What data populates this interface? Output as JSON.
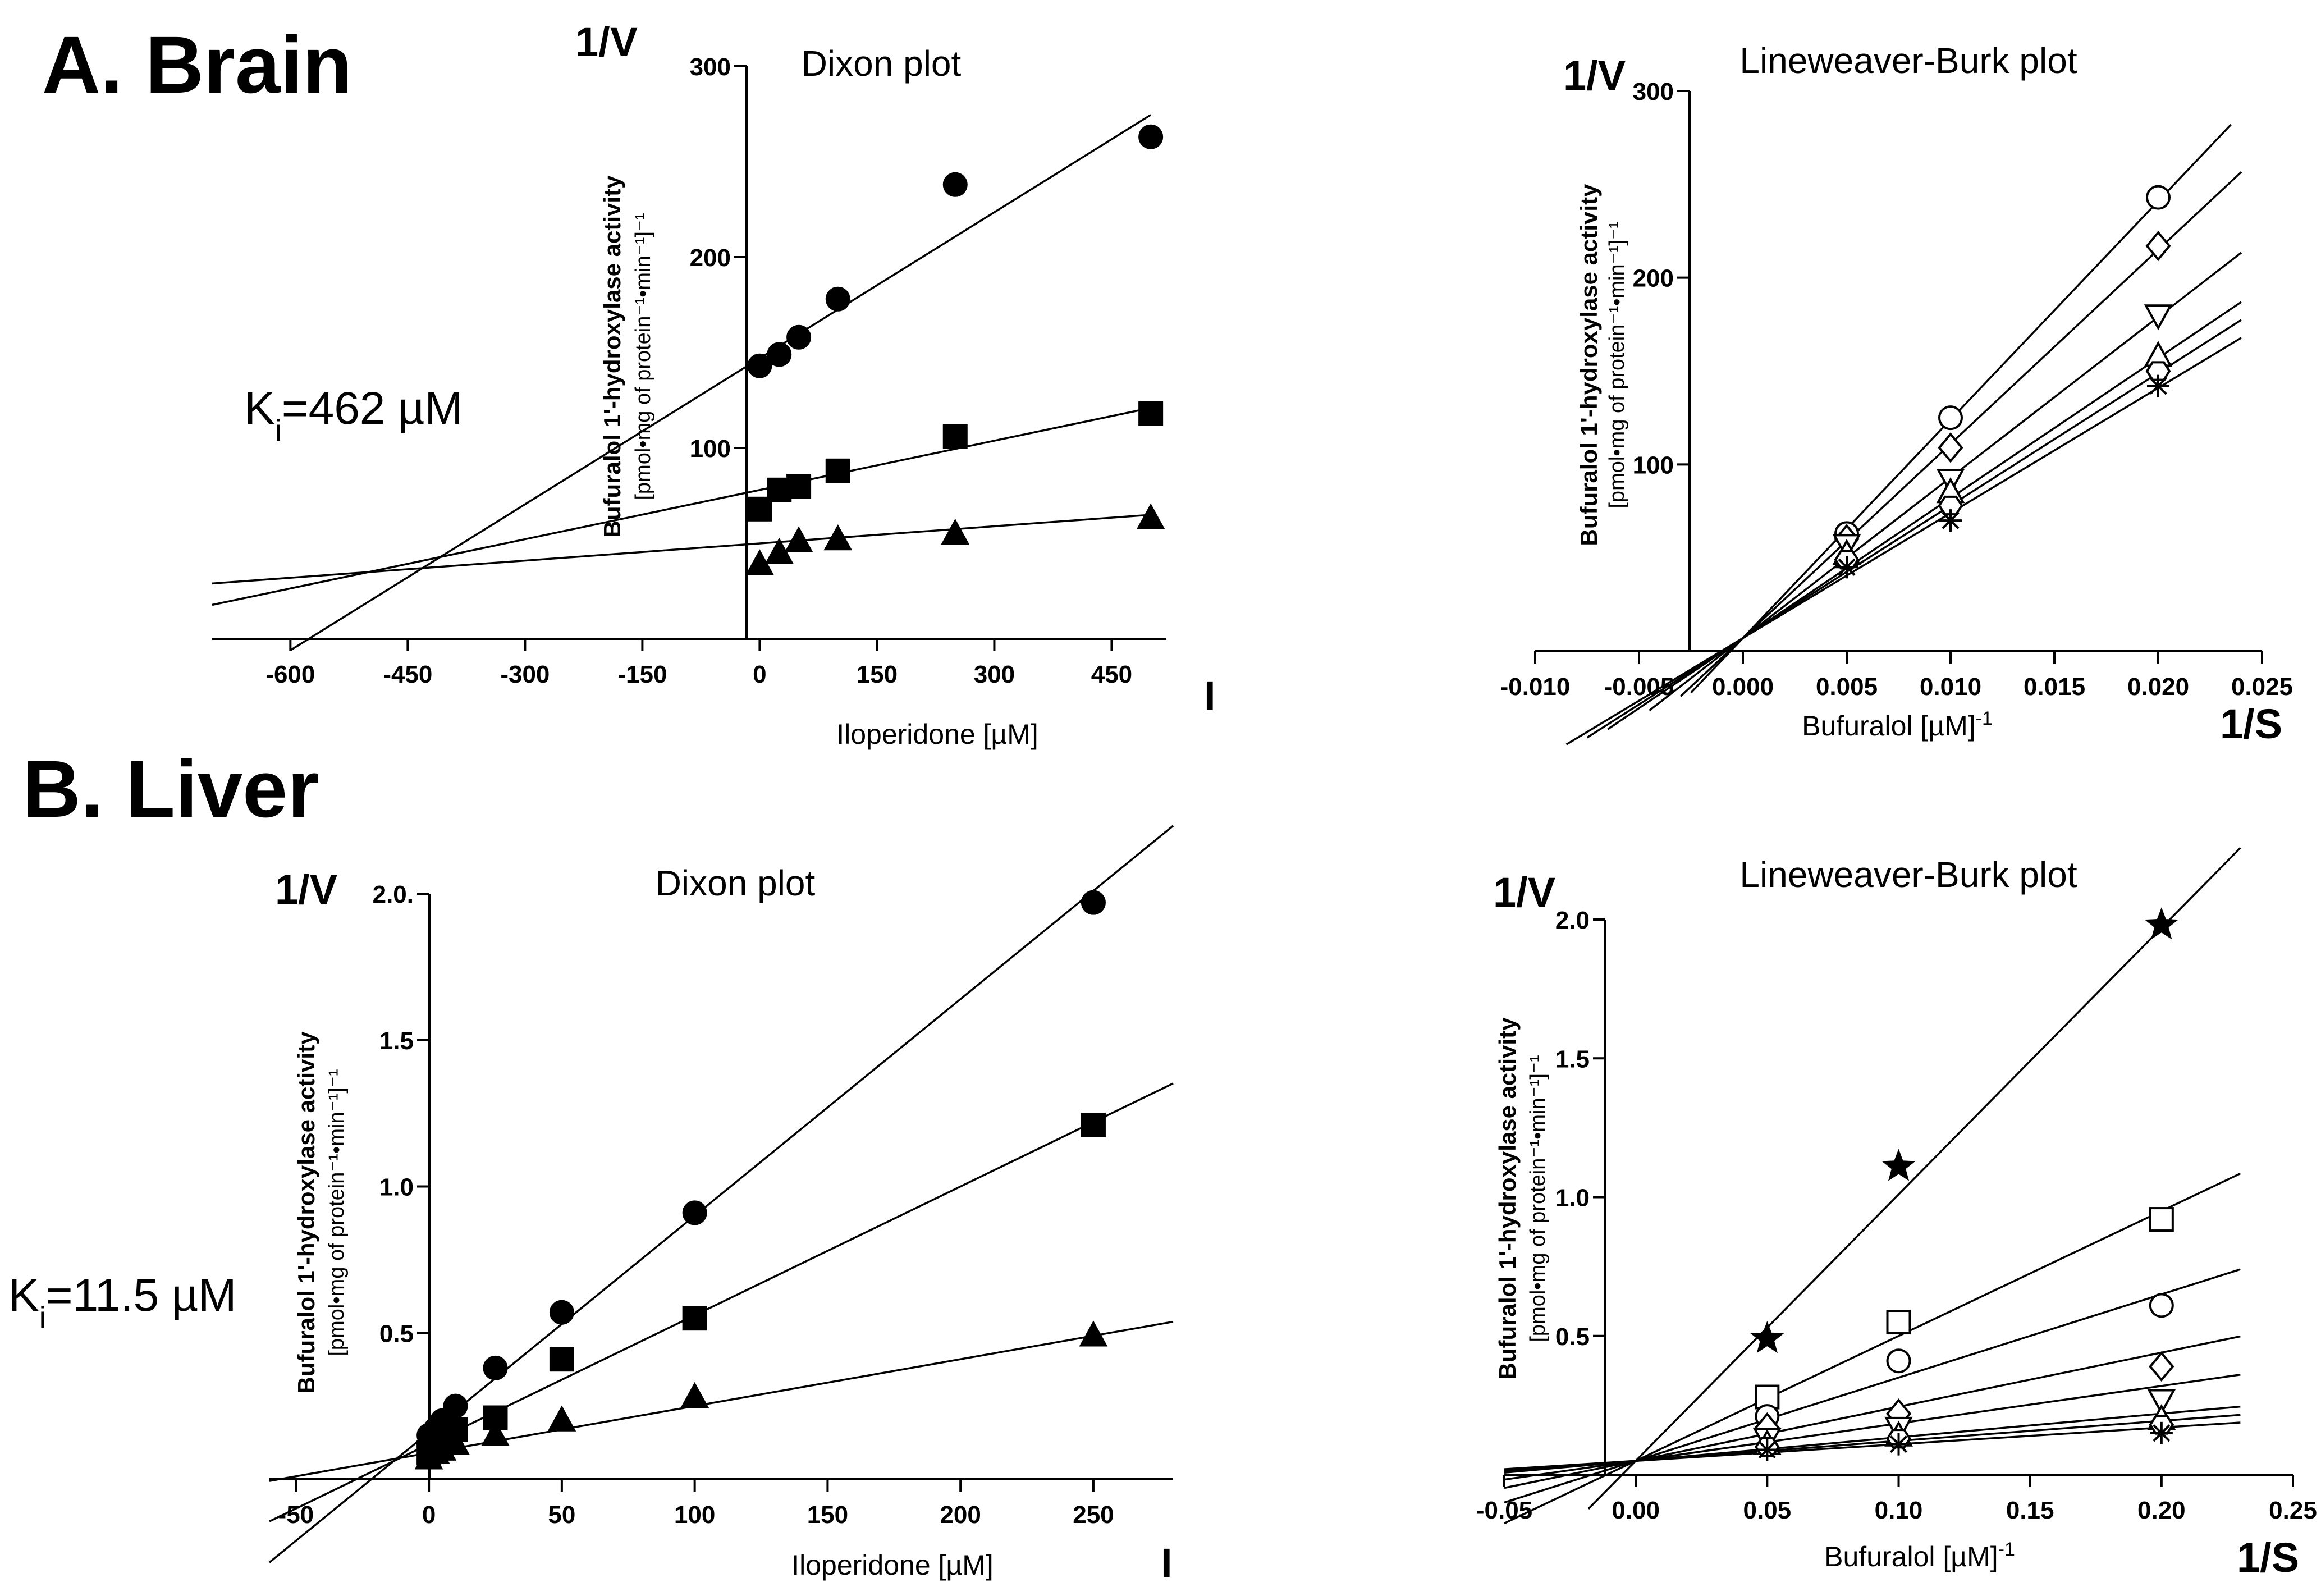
{
  "panels": {
    "brain": {
      "label": "A. Brain",
      "ki": "K",
      "ki_sub": "i",
      "ki_value": "=462 µM"
    },
    "liver": {
      "label": "B. Liver",
      "ki": "K",
      "ki_sub": "i",
      "ki_value": "=11.5 µM"
    }
  },
  "chart_data": [
    {
      "id": "brain-dixon",
      "type": "scatter",
      "title": "Dixon plot",
      "xlabel": "Iloperidone [µM]",
      "ylabel": "Bufuralol 1'-hydroxylase activity",
      "ylabel_units": "[pmol•mg of protein⁻¹•min⁻¹]⁻¹",
      "corner_y": "1/V",
      "corner_x": "I",
      "xlim": [
        -700,
        520
      ],
      "ylim": [
        0,
        300
      ],
      "xticks": [
        -600,
        -450,
        -300,
        -150,
        0,
        150,
        300,
        450
      ],
      "xtick_labels": [
        "-600",
        "-450",
        "-300",
        "-150",
        "0",
        "150",
        "300",
        "450"
      ],
      "yticks": [
        100,
        200,
        300
      ],
      "ytick_labels": [
        "100",
        "200",
        "300"
      ],
      "series": [
        {
          "name": "circle",
          "marker": "circle-filled",
          "x": [
            0,
            25,
            50,
            100,
            250,
            500
          ],
          "y": [
            143,
            149,
            158,
            178,
            238,
            263
          ],
          "fit": {
            "slope": 0.255,
            "intercept": 147,
            "x_range": [
              -600,
              500
            ]
          }
        },
        {
          "name": "square",
          "marker": "square-filled",
          "x": [
            0,
            25,
            50,
            100,
            250,
            500
          ],
          "y": [
            68,
            78,
            80,
            88,
            106,
            118
          ],
          "fit": {
            "slope": 0.086,
            "intercept": 78,
            "x_range": [
              -700,
              500
            ]
          }
        },
        {
          "name": "triangle",
          "marker": "triangle-filled",
          "x": [
            0,
            25,
            50,
            100,
            250,
            500
          ],
          "y": [
            39,
            45,
            51,
            52,
            55,
            63
          ],
          "fit": {
            "slope": 0.03,
            "intercept": 50,
            "x_range": [
              -700,
              500
            ]
          }
        }
      ]
    },
    {
      "id": "brain-lb",
      "type": "scatter",
      "title": "Lineweaver-Burk plot",
      "xlabel": "Bufuralol [µM]",
      "xlabel_sup": "-1",
      "ylabel": "Bufuralol 1'-hydroxylase activity",
      "ylabel_units": "[pmol•mg of protein⁻¹•min⁻¹]⁻¹",
      "corner_y": "1/V",
      "corner_x": "1/S",
      "xlim": [
        -0.01,
        0.025
      ],
      "ylim": [
        0,
        300
      ],
      "xticks": [
        -0.01,
        -0.005,
        0,
        0.005,
        0.01,
        0.015,
        0.02,
        0.025
      ],
      "xtick_labels": [
        "-0.010",
        "-0.005",
        "0.000",
        "0.005",
        "0.010",
        "0.015",
        "0.020",
        "0.025"
      ],
      "yticks": [
        100,
        200,
        300
      ],
      "ytick_labels": [
        "100",
        "200",
        "300"
      ],
      "series": [
        {
          "name": "circle",
          "marker": "circle-open",
          "x": [
            0.005,
            0.01,
            0.02
          ],
          "y": [
            63,
            125,
            243
          ],
          "fit": {
            "slope": 11700,
            "intercept": 7,
            "x_range": [
              -0.0025,
              0.0235
            ]
          }
        },
        {
          "name": "diamond",
          "marker": "diamond-open",
          "x": [
            0.005,
            0.01,
            0.02
          ],
          "y": [
            60,
            109,
            217
          ],
          "fit": {
            "slope": 10400,
            "intercept": 7,
            "x_range": [
              -0.003,
              0.024
            ]
          }
        },
        {
          "name": "down-triangle",
          "marker": "triangle-down-open",
          "x": [
            0.005,
            0.01,
            0.02
          ],
          "y": [
            57,
            92,
            180
          ],
          "fit": {
            "slope": 8600,
            "intercept": 7,
            "x_range": [
              -0.0045,
              0.024
            ]
          }
        },
        {
          "name": "up-triangle",
          "marker": "triangle-up-open",
          "x": [
            0.005,
            0.01,
            0.02
          ],
          "y": [
            52,
            85,
            158
          ],
          "fit": {
            "slope": 7500,
            "intercept": 7,
            "x_range": [
              -0.0065,
              0.024
            ]
          }
        },
        {
          "name": "hexagon",
          "marker": "hexagon-open",
          "x": [
            0.005,
            0.01,
            0.02
          ],
          "y": [
            49,
            78,
            150
          ],
          "fit": {
            "slope": 7100,
            "intercept": 7,
            "x_range": [
              -0.0075,
              0.024
            ]
          }
        },
        {
          "name": "asterisk",
          "marker": "asterisk",
          "x": [
            0.005,
            0.01,
            0.02
          ],
          "y": [
            45,
            70,
            142
          ],
          "fit": {
            "slope": 6700,
            "intercept": 7,
            "x_range": [
              -0.0085,
              0.024
            ]
          }
        }
      ]
    },
    {
      "id": "liver-dixon",
      "type": "scatter",
      "title": "Dixon plot",
      "xlabel": "Iloperidone [µM]",
      "ylabel": "Bufuralol 1'-hydroxylase activity",
      "ylabel_units": "[pmol•mg of protein⁻¹•min⁻¹]⁻¹",
      "corner_y": "1/V",
      "corner_x": "I",
      "xlim": [
        -60,
        280
      ],
      "ylim": [
        0,
        2.0
      ],
      "xticks": [
        -50,
        0,
        50,
        100,
        150,
        200,
        250
      ],
      "xtick_labels": [
        "-50",
        "0",
        "50",
        "100",
        "150",
        "200",
        "250"
      ],
      "yticks": [
        0.5,
        1.0,
        1.5,
        2.0
      ],
      "ytick_labels": [
        "0.5",
        "1.0",
        "1.5",
        "2.0."
      ],
      "series": [
        {
          "name": "circle",
          "marker": "circle-filled",
          "x": [
            0,
            2.5,
            5,
            10,
            25,
            50,
            100,
            250
          ],
          "y": [
            0.15,
            0.17,
            0.2,
            0.25,
            0.38,
            0.57,
            0.91,
            1.97
          ],
          "fit": {
            "slope": 0.0074,
            "intercept": 0.16,
            "x_range": [
              -60,
              280
            ]
          }
        },
        {
          "name": "square",
          "marker": "square-filled",
          "x": [
            0,
            2.5,
            5,
            10,
            25,
            50,
            100,
            250
          ],
          "y": [
            0.09,
            0.11,
            0.13,
            0.17,
            0.21,
            0.41,
            0.55,
            1.21
          ],
          "fit": {
            "slope": 0.0044,
            "intercept": 0.12,
            "x_range": [
              -60,
              280
            ]
          }
        },
        {
          "name": "triangle",
          "marker": "triangle-filled",
          "x": [
            0,
            2.5,
            5,
            10,
            25,
            50,
            100,
            250
          ],
          "y": [
            0.07,
            0.09,
            0.1,
            0.12,
            0.15,
            0.2,
            0.28,
            0.49
          ],
          "fit": {
            "slope": 0.0016,
            "intercept": 0.09,
            "x_range": [
              -60,
              280
            ]
          }
        }
      ]
    },
    {
      "id": "liver-lb",
      "type": "scatter",
      "title": "Lineweaver-Burk plot",
      "xlabel": "Bufuralol [µM]",
      "xlabel_sup": "-1",
      "ylabel": "Bufuralol 1'-hydroxylase activity",
      "ylabel_units": "[pmol•mg of protein⁻¹•min⁻¹]⁻¹",
      "corner_y": "1/V",
      "corner_x": "1/S",
      "xlim": [
        -0.05,
        0.25
      ],
      "ylim": [
        0,
        2.0
      ],
      "xticks": [
        -0.05,
        0,
        0.05,
        0.1,
        0.15,
        0.2,
        0.25
      ],
      "xtick_labels": [
        "-0.05",
        "0.00",
        "0.05",
        "0.10",
        "0.15",
        "0.20",
        "0.25"
      ],
      "yticks": [
        0.5,
        1.0,
        1.5,
        2.0
      ],
      "ytick_labels": [
        "0.5",
        "1.0",
        "1.5",
        "2.0"
      ],
      "series": [
        {
          "name": "star",
          "marker": "star-filled",
          "x": [
            0.05,
            0.1,
            0.2
          ],
          "y": [
            0.49,
            1.11,
            1.98
          ],
          "fit": {
            "slope": 9.6,
            "intercept": 0.05,
            "x_range": [
              -0.018,
              0.23
            ]
          }
        },
        {
          "name": "square",
          "marker": "square-open",
          "x": [
            0.05,
            0.1,
            0.2
          ],
          "y": [
            0.28,
            0.55,
            0.92
          ],
          "fit": {
            "slope": 4.5,
            "intercept": 0.05,
            "x_range": [
              -0.05,
              0.23
            ]
          }
        },
        {
          "name": "circle",
          "marker": "circle-open",
          "x": [
            0.05,
            0.1,
            0.2
          ],
          "y": [
            0.21,
            0.41,
            0.61
          ],
          "fit": {
            "slope": 3.0,
            "intercept": 0.05,
            "x_range": [
              -0.05,
              0.23
            ]
          }
        },
        {
          "name": "diamond",
          "marker": "diamond-open",
          "x": [
            0.05,
            0.1,
            0.2
          ],
          "y": [
            0.17,
            0.22,
            0.39
          ],
          "fit": {
            "slope": 1.95,
            "intercept": 0.05,
            "x_range": [
              -0.05,
              0.23
            ]
          }
        },
        {
          "name": "down-triangle",
          "marker": "triangle-down-open",
          "x": [
            0.05,
            0.1,
            0.2
          ],
          "y": [
            0.13,
            0.17,
            0.27
          ],
          "fit": {
            "slope": 1.35,
            "intercept": 0.05,
            "x_range": [
              -0.05,
              0.23
            ]
          }
        },
        {
          "name": "up-triangle",
          "marker": "triangle-up-open",
          "x": [
            0.05,
            0.1,
            0.2
          ],
          "y": [
            0.11,
            0.14,
            0.2
          ],
          "fit": {
            "slope": 0.85,
            "intercept": 0.05,
            "x_range": [
              -0.05,
              0.23
            ]
          }
        },
        {
          "name": "hexagon",
          "marker": "hexagon-open",
          "x": [
            0.05,
            0.1,
            0.2
          ],
          "y": [
            0.1,
            0.13,
            0.18
          ],
          "fit": {
            "slope": 0.72,
            "intercept": 0.05,
            "x_range": [
              -0.05,
              0.23
            ]
          }
        },
        {
          "name": "asterisk",
          "marker": "asterisk",
          "x": [
            0.05,
            0.1,
            0.2
          ],
          "y": [
            0.09,
            0.11,
            0.15
          ],
          "fit": {
            "slope": 0.6,
            "intercept": 0.05,
            "x_range": [
              -0.05,
              0.23
            ]
          }
        }
      ]
    }
  ]
}
